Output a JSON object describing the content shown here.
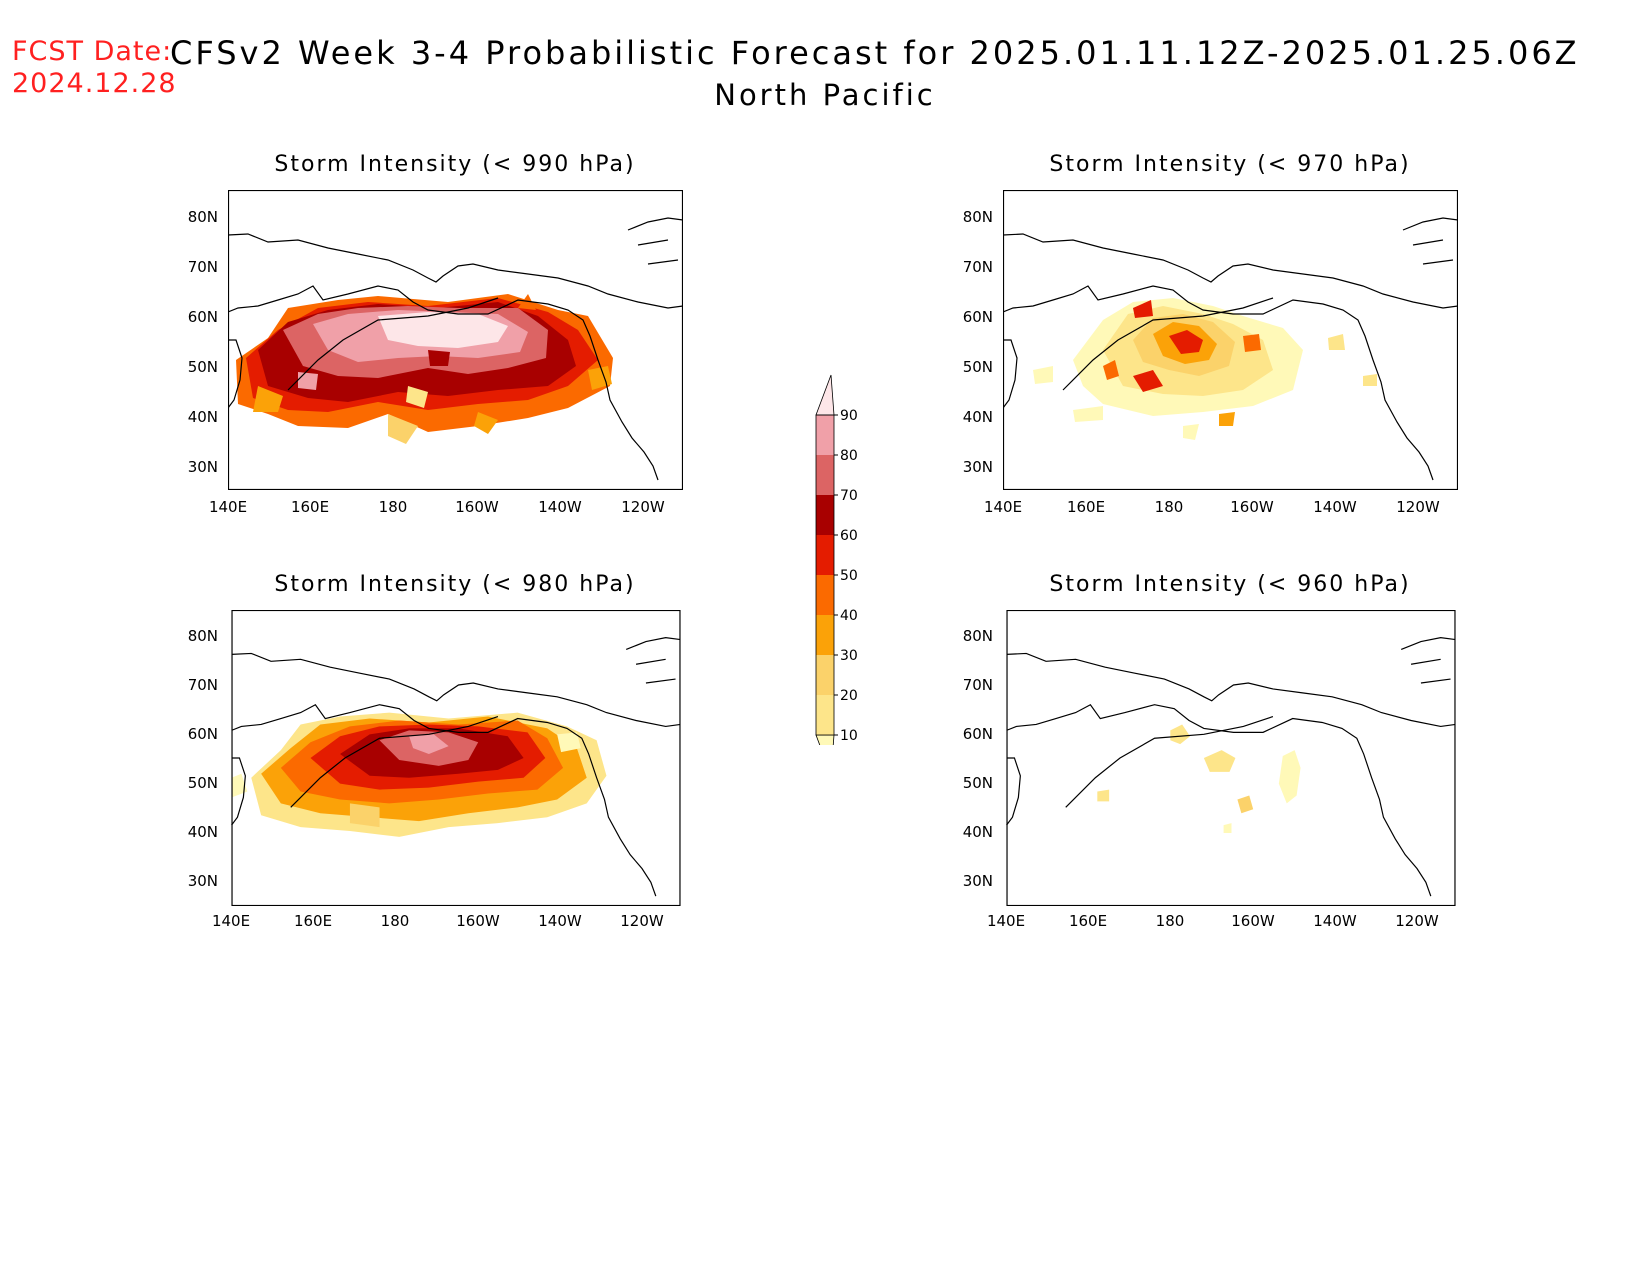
{
  "header": {
    "fcst_label": "FCST Date:",
    "fcst_date": "2024.12.28",
    "title": "CFSv2 Week 3-4 Probabilistic Forecast for 2025.01.11.12Z-2025.01.25.06Z",
    "region": "North Pacific"
  },
  "axes": {
    "lat_labels": [
      "80N",
      "70N",
      "60N",
      "50N",
      "40N",
      "30N"
    ],
    "lon_labels": [
      "140E",
      "160E",
      "180",
      "160W",
      "140W",
      "120W"
    ]
  },
  "panels": [
    {
      "id": "p990",
      "title": "Storm Intensity (< 990 hPa)"
    },
    {
      "id": "p970",
      "title": "Storm Intensity (< 970 hPa)"
    },
    {
      "id": "p980",
      "title": "Storm Intensity (< 980 hPa)"
    },
    {
      "id": "p960",
      "title": "Storm Intensity (< 960 hPa)"
    }
  ],
  "colorbar": {
    "levels": [
      "10",
      "20",
      "30",
      "40",
      "50",
      "60",
      "70",
      "80",
      "90"
    ],
    "colors": [
      "#fff9b8",
      "#fde58a",
      "#fbd26a",
      "#fba208",
      "#fb6a00",
      "#e41c00",
      "#a80000",
      "#dc6464",
      "#f0a0a8",
      "#fde6e8"
    ]
  }
}
